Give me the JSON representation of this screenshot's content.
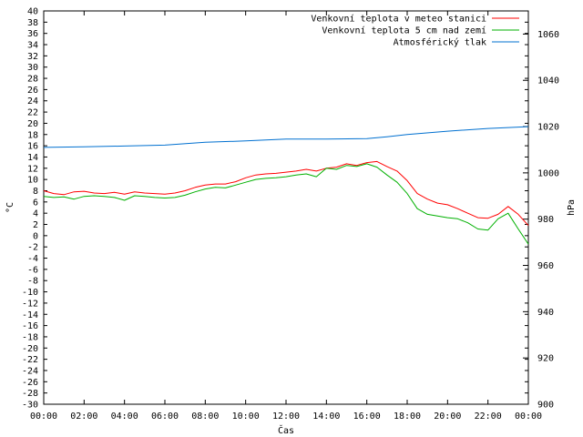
{
  "chart_data": {
    "type": "line",
    "xlabel": "Čas",
    "ylabel_left": "°C",
    "ylabel_right": "hPa",
    "x_ticks": [
      "00:00",
      "02:00",
      "04:00",
      "06:00",
      "08:00",
      "10:00",
      "12:00",
      "14:00",
      "16:00",
      "18:00",
      "20:00",
      "22:00",
      "00:00"
    ],
    "x_range_hours": [
      0,
      24
    ],
    "y_left_range": [
      -30,
      40
    ],
    "y_left_step": 2,
    "y_right_range": [
      900,
      1070
    ],
    "y_right_ticks": [
      900,
      920,
      940,
      960,
      980,
      1000,
      1020,
      1040,
      1060
    ],
    "grid": false,
    "legend_position": "top-right",
    "series": [
      {
        "name": "Venkovní teplota v meteo stanici",
        "axis": "left",
        "color": "#ff0000",
        "x": [
          0,
          0.5,
          1,
          1.5,
          2,
          2.5,
          3,
          3.5,
          4,
          4.5,
          5,
          5.5,
          6,
          6.5,
          7,
          7.5,
          8,
          8.5,
          9,
          9.5,
          10,
          10.5,
          11,
          11.5,
          12,
          12.5,
          13,
          13.5,
          14,
          14.5,
          15,
          15.5,
          16,
          16.5,
          17,
          17.5,
          18,
          18.5,
          19,
          19.5,
          20,
          20.5,
          21,
          21.5,
          22,
          22.5,
          23,
          23.5,
          24
        ],
        "values": [
          8.0,
          7.5,
          7.3,
          7.8,
          7.9,
          7.6,
          7.5,
          7.7,
          7.4,
          7.8,
          7.6,
          7.5,
          7.4,
          7.6,
          8.0,
          8.6,
          9.0,
          9.2,
          9.2,
          9.6,
          10.3,
          10.8,
          11.0,
          11.1,
          11.3,
          11.5,
          11.8,
          11.5,
          12.0,
          12.2,
          12.8,
          12.5,
          13.0,
          13.2,
          12.3,
          11.5,
          9.8,
          7.5,
          6.5,
          5.8,
          5.5,
          4.8,
          4.0,
          3.2,
          3.1,
          3.8,
          5.2,
          3.8,
          1.8
        ]
      },
      {
        "name": "Venkovní teplota 5 cm nad zemí",
        "axis": "left",
        "color": "#00b000",
        "x": [
          0,
          0.5,
          1,
          1.5,
          2,
          2.5,
          3,
          3.5,
          4,
          4.5,
          5,
          5.5,
          6,
          6.5,
          7,
          7.5,
          8,
          8.5,
          9,
          9.5,
          10,
          10.5,
          11,
          11.5,
          12,
          12.5,
          13,
          13.5,
          14,
          14.5,
          15,
          15.5,
          16,
          16.5,
          17,
          17.5,
          18,
          18.5,
          19,
          19.5,
          20,
          20.5,
          21,
          21.5,
          22,
          22.5,
          23,
          23.5,
          24
        ],
        "values": [
          7.0,
          6.8,
          6.9,
          6.5,
          7.0,
          7.1,
          7.0,
          6.8,
          6.3,
          7.1,
          7.0,
          6.8,
          6.7,
          6.8,
          7.2,
          7.8,
          8.3,
          8.6,
          8.5,
          9.0,
          9.5,
          10.0,
          10.2,
          10.3,
          10.5,
          10.8,
          11.0,
          10.5,
          12.0,
          11.8,
          12.5,
          12.3,
          12.8,
          12.2,
          10.8,
          9.5,
          7.5,
          4.8,
          3.8,
          3.5,
          3.2,
          3.0,
          2.3,
          1.2,
          1.0,
          3.0,
          4.0,
          1.2,
          -1.5
        ]
      },
      {
        "name": "Atmosférický tlak",
        "axis": "right",
        "color": "#0070d0",
        "x": [
          0,
          2,
          4,
          6,
          8,
          10,
          12,
          14,
          16,
          17,
          18,
          20,
          22,
          24
        ],
        "values": [
          1011.0,
          1011.3,
          1011.6,
          1012.0,
          1013.2,
          1013.8,
          1014.6,
          1014.6,
          1014.8,
          1015.6,
          1016.6,
          1018.0,
          1019.2,
          1020.0
        ]
      }
    ]
  }
}
